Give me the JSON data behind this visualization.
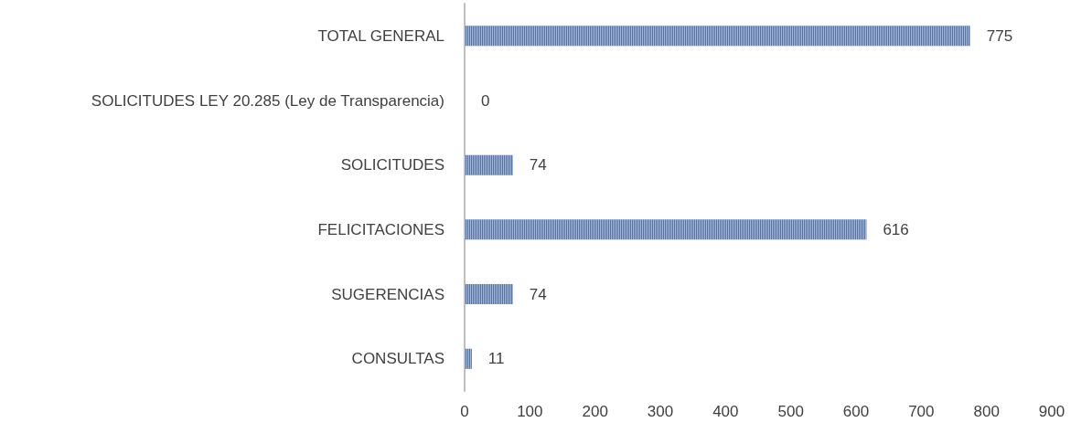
{
  "chart_data": {
    "type": "bar",
    "orientation": "horizontal",
    "categories": [
      "TOTAL GENERAL",
      "SOLICITUDES LEY 20.285 (Ley de Transparencia)",
      "SOLICITUDES",
      "FELICITACIONES",
      "SUGERENCIAS",
      "CONSULTAS"
    ],
    "values": [
      775,
      0,
      74,
      616,
      74,
      11
    ],
    "color": "#4472c4",
    "xlim": [
      0,
      900
    ],
    "xticks": [
      0,
      100,
      200,
      300,
      400,
      500,
      600,
      700,
      800,
      900
    ],
    "grid": false,
    "data_labels": true
  }
}
